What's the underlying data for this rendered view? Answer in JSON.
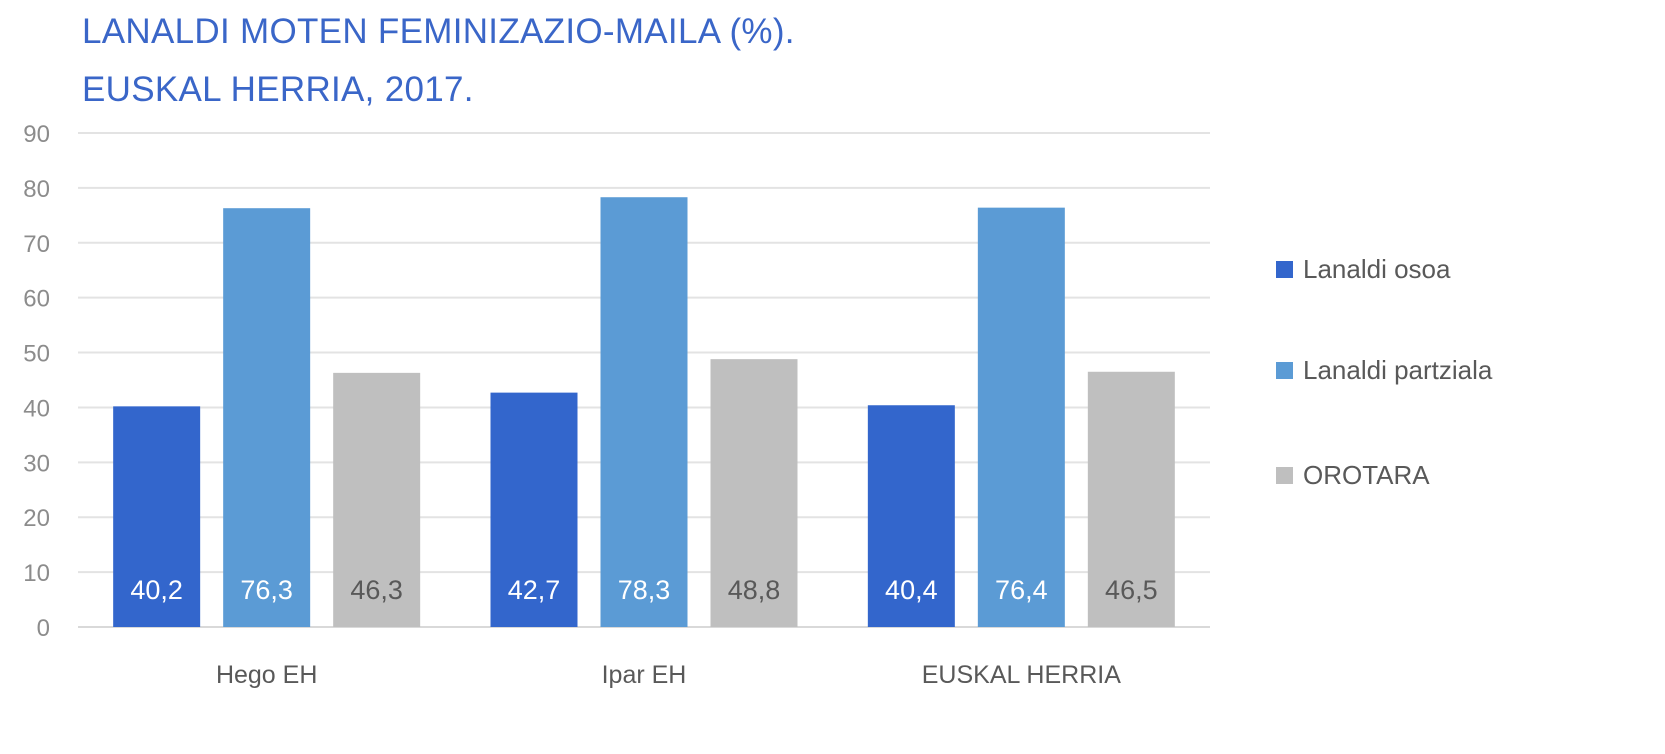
{
  "chart_data": {
    "type": "bar",
    "title": [
      "LANALDI MOTEN FEMINIZAZIO-MAILA (%).",
      "EUSKAL HERRIA, 2017."
    ],
    "xlabel": "",
    "ylabel": "",
    "ylim": [
      0,
      90
    ],
    "yticks": [
      0,
      10,
      20,
      30,
      40,
      50,
      60,
      70,
      80,
      90
    ],
    "grid": true,
    "legend_position": "right",
    "categories": [
      "Hego EH",
      "Ipar EH",
      "EUSKAL HERRIA"
    ],
    "series": [
      {
        "name": "Lanaldi osoa",
        "color": "#3366CC",
        "label_color": "#FFFFFF",
        "values": [
          40.2,
          42.7,
          40.4
        ],
        "labels": [
          "40,2",
          "42,7",
          "40,4"
        ]
      },
      {
        "name": "Lanaldi partziala",
        "color": "#5B9BD5",
        "label_color": "#FFFFFF",
        "values": [
          76.3,
          78.3,
          76.4
        ],
        "labels": [
          "76,3",
          "78,3",
          "76,4"
        ]
      },
      {
        "name": "OROTARA",
        "color": "#BFBFBF",
        "label_color": "#595959",
        "values": [
          46.3,
          48.8,
          46.5
        ],
        "labels": [
          "46,3",
          "48,8",
          "46,5"
        ]
      }
    ]
  }
}
